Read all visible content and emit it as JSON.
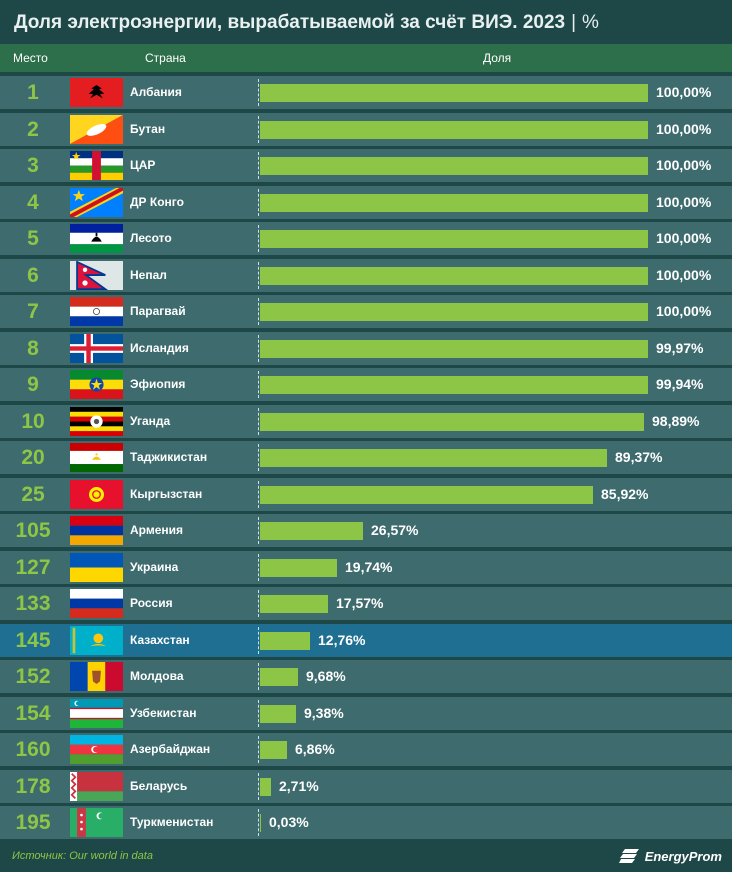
{
  "title": "Доля электроэнергии, вырабатываемой за счёт ВИЭ. 2023",
  "title_separator": "|",
  "unit": "%",
  "header": {
    "rank": "Место",
    "country": "Страна",
    "share": "Доля"
  },
  "colors": {
    "background": "#1e4747",
    "header": "#2d6f4a",
    "row": "#3e6b6e",
    "highlight_row": "#1f6f92",
    "bar": "#8dc646",
    "rank": "#8dc646"
  },
  "chart_data": {
    "type": "bar",
    "orientation": "horizontal",
    "title": "Доля электроэнергии, вырабатываемой за счёт ВИЭ. 2023",
    "unit": "%",
    "xlim": [
      0,
      100
    ],
    "rows": [
      {
        "rank": "1",
        "country": "Албания",
        "value": 100.0,
        "label": "100,00%",
        "flag": "albania"
      },
      {
        "rank": "2",
        "country": "Бутан",
        "value": 100.0,
        "label": "100,00%",
        "flag": "bhutan"
      },
      {
        "rank": "3",
        "country": "ЦАР",
        "value": 100.0,
        "label": "100,00%",
        "flag": "car"
      },
      {
        "rank": "4",
        "country": "ДР Конго",
        "value": 100.0,
        "label": "100,00%",
        "flag": "drc"
      },
      {
        "rank": "5",
        "country": "Лесото",
        "value": 100.0,
        "label": "100,00%",
        "flag": "lesotho"
      },
      {
        "rank": "6",
        "country": "Непал",
        "value": 100.0,
        "label": "100,00%",
        "flag": "nepal"
      },
      {
        "rank": "7",
        "country": "Парагвай",
        "value": 100.0,
        "label": "100,00%",
        "flag": "paraguay"
      },
      {
        "rank": "8",
        "country": "Исландия",
        "value": 99.97,
        "label": "99,97%",
        "flag": "iceland"
      },
      {
        "rank": "9",
        "country": "Эфиопия",
        "value": 99.94,
        "label": "99,94%",
        "flag": "ethiopia"
      },
      {
        "rank": "10",
        "country": "Уганда",
        "value": 98.89,
        "label": "98,89%",
        "flag": "uganda"
      },
      {
        "rank": "20",
        "country": "Таджикистан",
        "value": 89.37,
        "label": "89,37%",
        "flag": "tajikistan"
      },
      {
        "rank": "25",
        "country": "Кыргызстан",
        "value": 85.92,
        "label": "85,92%",
        "flag": "kyrgyzstan"
      },
      {
        "rank": "105",
        "country": "Армения",
        "value": 26.57,
        "label": "26,57%",
        "flag": "armenia"
      },
      {
        "rank": "127",
        "country": "Украина",
        "value": 19.74,
        "label": "19,74%",
        "flag": "ukraine"
      },
      {
        "rank": "133",
        "country": "Россия",
        "value": 17.57,
        "label": "17,57%",
        "flag": "russia"
      },
      {
        "rank": "145",
        "country": "Казахстан",
        "value": 12.76,
        "label": "12,76%",
        "flag": "kazakhstan",
        "highlight": true
      },
      {
        "rank": "152",
        "country": "Молдова",
        "value": 9.68,
        "label": "9,68%",
        "flag": "moldova"
      },
      {
        "rank": "154",
        "country": "Узбекистан",
        "value": 9.38,
        "label": "9,38%",
        "flag": "uzbekistan"
      },
      {
        "rank": "160",
        "country": "Азербайджан",
        "value": 6.86,
        "label": "6,86%",
        "flag": "azerbaijan"
      },
      {
        "rank": "178",
        "country": "Беларусь",
        "value": 2.71,
        "label": "2,71%",
        "flag": "belarus"
      },
      {
        "rank": "195",
        "country": "Туркменистан",
        "value": 0.03,
        "label": "0,03%",
        "flag": "turkmenistan"
      }
    ]
  },
  "source": "Источник: Our world in data",
  "logo": {
    "text": "EnergyProm",
    "icon": "energyprom-logo-icon"
  }
}
